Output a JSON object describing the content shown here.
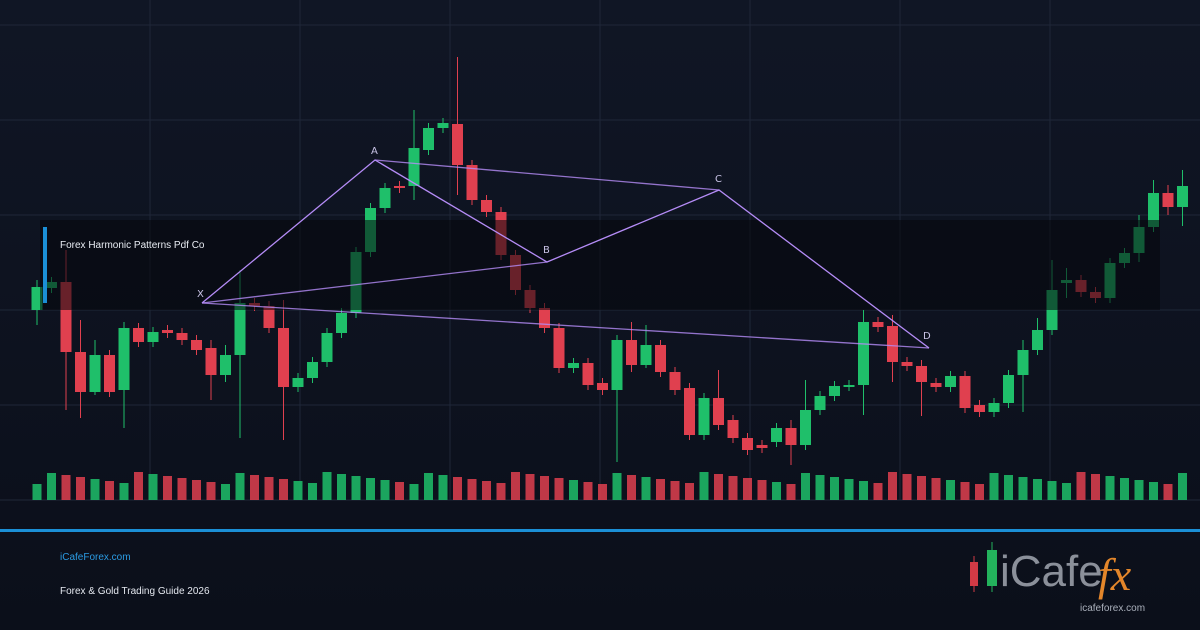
{
  "banner_title": "Forex Harmonic Patterns Pdf Co",
  "pattern_points": [
    "X",
    "A",
    "B",
    "C",
    "D"
  ],
  "footer": {
    "site": "iCafeForex.com",
    "tagline": "Forex & Gold Trading Guide 2026"
  },
  "logo": {
    "brand": "iCafe",
    "mark": "fx",
    "url": "icafeforex.com"
  }
}
